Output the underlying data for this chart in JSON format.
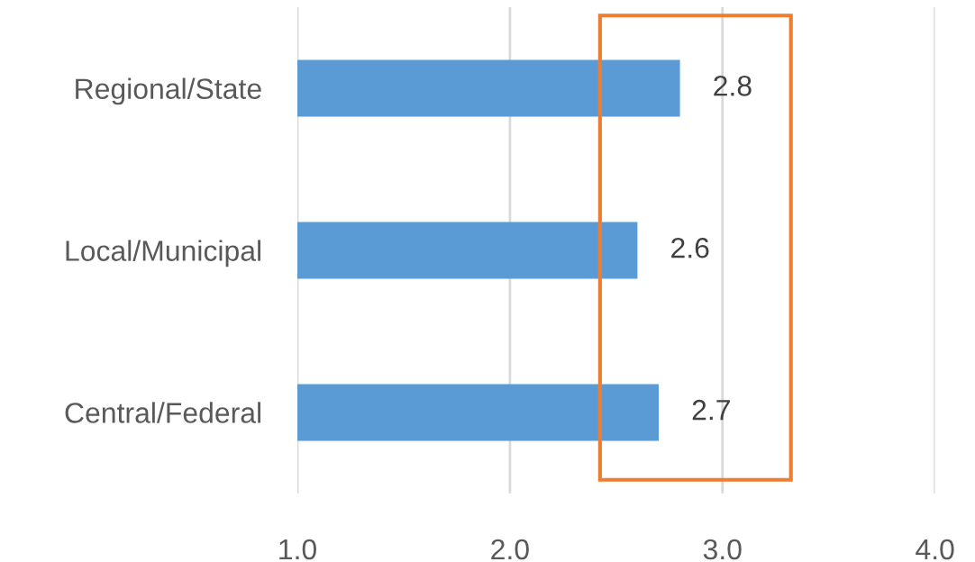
{
  "chart_data": {
    "type": "bar",
    "orientation": "horizontal",
    "categories": [
      "Regional/State",
      "Local/Municipal",
      "Central/Federal"
    ],
    "values": [
      2.8,
      2.6,
      2.7
    ],
    "color": "#5b9bd5",
    "xlim": [
      1,
      4
    ],
    "xticks": [
      {
        "value": 1,
        "label": "1.0"
      },
      {
        "value": 2,
        "label": "2.0"
      },
      {
        "value": 3,
        "label": "3.0"
      },
      {
        "value": 4,
        "label": "4.0"
      }
    ],
    "grid": "x",
    "data_labels": true
  }
}
